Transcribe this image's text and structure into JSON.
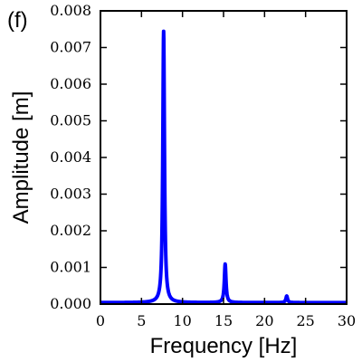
{
  "panel_label": "(f)",
  "chart_data": {
    "type": "line",
    "title": "",
    "xlabel": "Frequency [Hz]",
    "ylabel": "Amplitude [m]",
    "xlim": [
      0,
      30
    ],
    "ylim": [
      0,
      0.008
    ],
    "xticks": [
      0,
      5,
      10,
      15,
      20,
      25,
      30
    ],
    "yticks": [
      "0.000",
      "0.001",
      "0.002",
      "0.003",
      "0.004",
      "0.005",
      "0.006",
      "0.007",
      "0.008"
    ],
    "grid": false,
    "line_color": "#0000ff",
    "series": [
      {
        "peaks": [
          {
            "frequency": 7.7,
            "amplitude": 0.0074
          },
          {
            "frequency": 15.2,
            "amplitude": 0.00105
          },
          {
            "frequency": 22.7,
            "amplitude": 0.00018
          }
        ],
        "baseline": 4e-05
      }
    ]
  }
}
